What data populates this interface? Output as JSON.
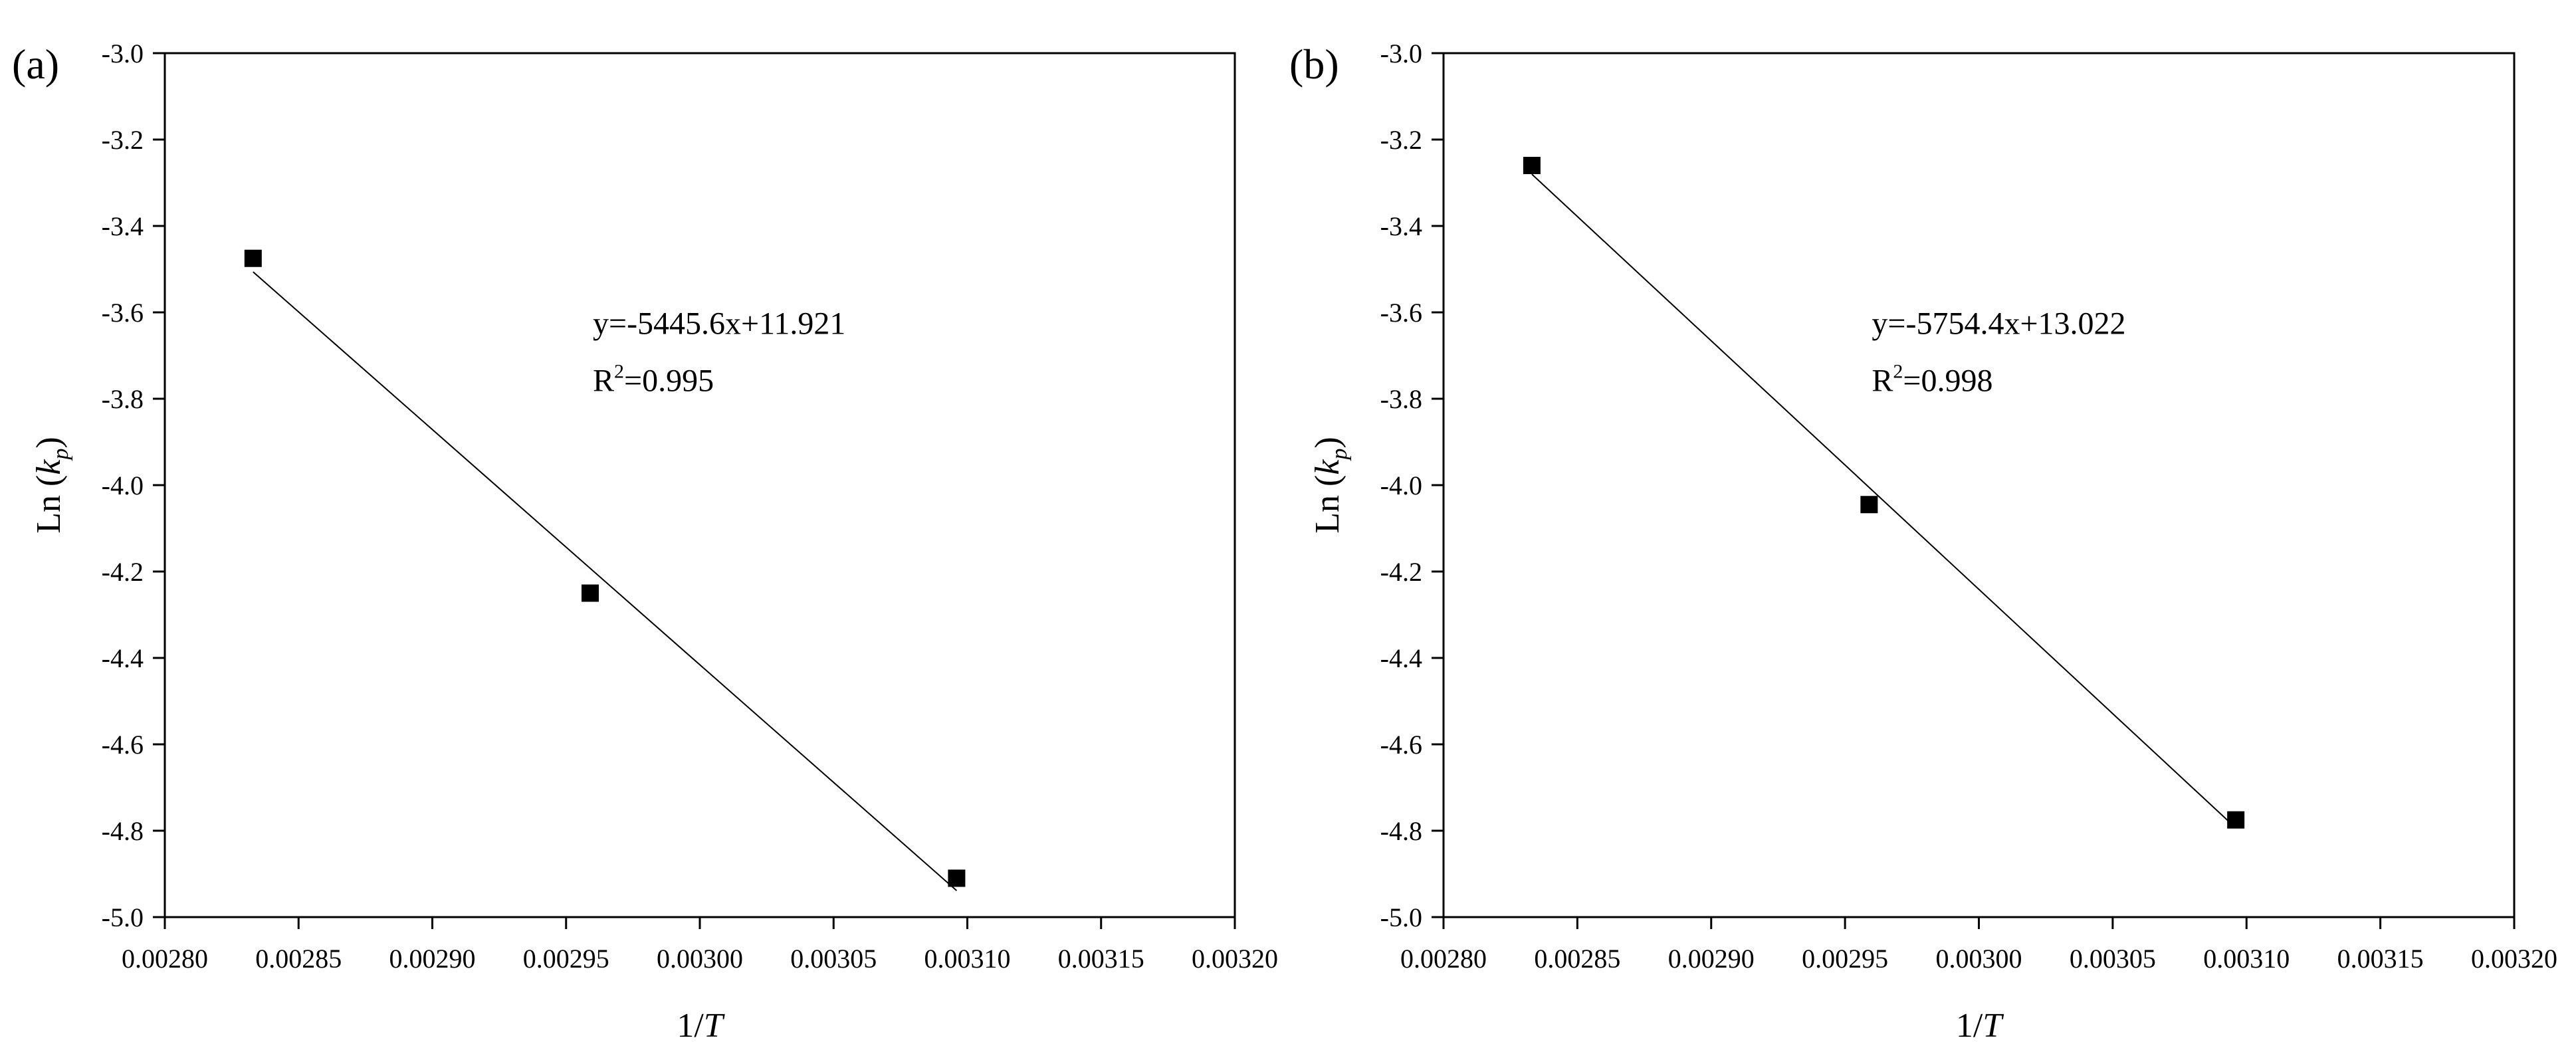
{
  "chart_data": [
    {
      "panel_label": "(a)",
      "type": "scatter",
      "xlabel": "1/T",
      "ylabel": "Ln (k_p)",
      "xlim": [
        0.0028,
        0.0032
      ],
      "ylim": [
        -5.0,
        -3.0
      ],
      "xticks": [
        "0.00280",
        "0.00285",
        "0.00290",
        "0.00295",
        "0.00300",
        "0.00305",
        "0.00310",
        "0.00315",
        "0.00320"
      ],
      "yticks": [
        "-3.0",
        "-3.2",
        "-3.4",
        "-3.6",
        "-3.8",
        "-4.0",
        "-4.2",
        "-4.4",
        "-4.6",
        "-4.8",
        "-5.0"
      ],
      "points": [
        {
          "x": 0.002833,
          "y": -3.475
        },
        {
          "x": 0.002959,
          "y": -4.25
        },
        {
          "x": 0.003096,
          "y": -4.91
        }
      ],
      "fit": {
        "slope": -5445.6,
        "intercept": 11.921
      },
      "equation": "y=-5445.6x+11.921",
      "r2_label": "R",
      "r2_sup": "2",
      "r2_value": "=0.995",
      "grid": false,
      "legend": "none"
    },
    {
      "panel_label": "(b)",
      "type": "scatter",
      "xlabel": "1/T",
      "ylabel": "Ln (k_p)",
      "xlim": [
        0.0028,
        0.0032
      ],
      "ylim": [
        -5.0,
        -3.0
      ],
      "xticks": [
        "0.00280",
        "0.00285",
        "0.00290",
        "0.00295",
        "0.00300",
        "0.00305",
        "0.00310",
        "0.00315",
        "0.00320"
      ],
      "yticks": [
        "-3.0",
        "-3.2",
        "-3.4",
        "-3.6",
        "-3.8",
        "-4.0",
        "-4.2",
        "-4.4",
        "-4.6",
        "-4.8",
        "-5.0"
      ],
      "points": [
        {
          "x": 0.002833,
          "y": -3.26
        },
        {
          "x": 0.002959,
          "y": -4.045
        },
        {
          "x": 0.003096,
          "y": -4.775
        }
      ],
      "fit": {
        "slope": -5754.4,
        "intercept": 13.022
      },
      "equation": "y=-5754.4x+13.022",
      "r2_label": "R",
      "r2_sup": "2",
      "r2_value": "=0.998",
      "grid": false,
      "legend": "none"
    }
  ],
  "colors": {
    "axis": "#000000",
    "marker": "#000000",
    "fit_line": "#000000"
  }
}
